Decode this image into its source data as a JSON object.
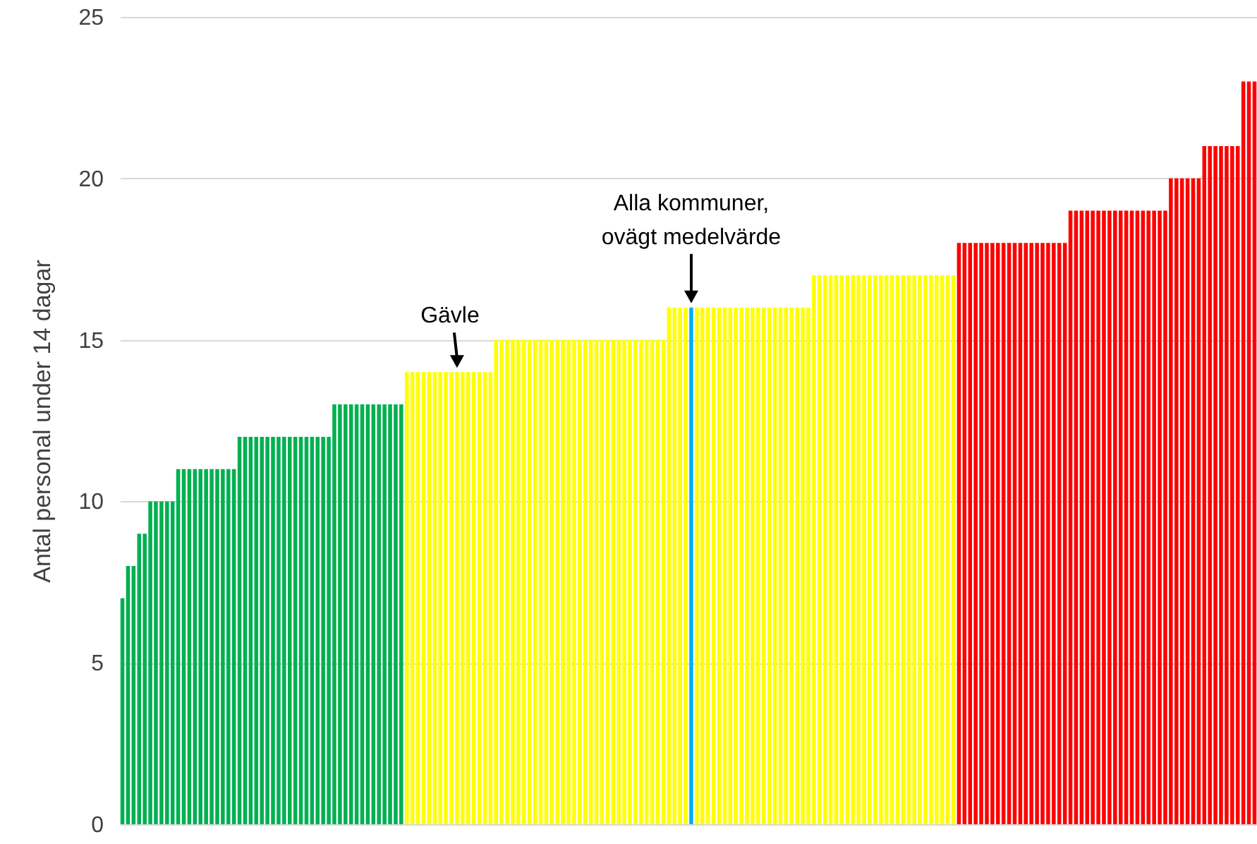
{
  "chart_data": {
    "type": "bar",
    "ylabel": "Antal personal under 14 dagar",
    "categories": [
      null,
      null,
      null,
      null,
      null,
      null,
      null,
      null,
      null,
      null,
      null,
      null,
      null,
      null,
      null,
      null,
      null,
      null,
      null,
      null,
      null,
      null,
      null,
      null,
      null,
      null,
      null,
      null,
      null,
      null,
      null,
      null,
      null,
      null,
      null,
      null,
      null,
      null,
      null,
      null,
      null,
      null,
      null,
      null,
      null,
      null,
      null,
      null,
      null,
      null,
      null,
      null,
      null,
      null,
      null,
      null,
      null,
      null,
      null,
      null,
      null,
      null,
      null,
      null,
      null,
      null,
      null,
      null,
      null,
      null,
      null,
      null,
      null,
      null,
      null,
      null,
      null,
      null,
      null,
      null,
      null,
      null,
      null,
      null,
      null,
      null,
      null,
      null,
      null,
      null,
      null,
      null,
      null,
      null,
      null,
      null,
      null,
      null,
      null,
      null,
      null,
      null,
      null,
      null,
      null,
      null,
      null,
      null,
      null,
      null,
      null,
      null,
      null,
      null,
      null,
      null,
      null,
      null,
      null,
      null,
      null,
      null,
      null,
      null,
      null,
      null,
      null,
      null,
      null,
      null,
      null,
      null,
      null,
      null,
      null,
      null,
      null,
      null,
      null,
      null,
      null,
      null,
      null,
      null,
      null,
      null,
      null,
      null,
      null,
      null,
      null,
      null,
      null,
      null,
      null,
      null,
      null,
      null,
      null,
      null,
      null,
      null,
      null,
      null,
      null,
      null,
      null,
      null,
      null,
      null,
      null,
      null,
      null,
      null,
      null,
      null,
      null,
      null,
      null,
      null,
      null,
      null,
      null,
      null,
      null,
      null,
      null,
      null,
      null,
      null,
      null,
      null,
      null,
      null,
      null,
      null,
      null,
      null,
      null,
      null,
      null,
      null,
      null,
      null
    ],
    "values": [
      7,
      8,
      8,
      9,
      9,
      10,
      10,
      10,
      10,
      10,
      11,
      11,
      11,
      11,
      11,
      11,
      11,
      11,
      11,
      11,
      11,
      12,
      12,
      12,
      12,
      12,
      12,
      12,
      12,
      12,
      12,
      12,
      12,
      12,
      12,
      12,
      12,
      12,
      13,
      13,
      13,
      13,
      13,
      13,
      13,
      13,
      13,
      13,
      13,
      13,
      13,
      14,
      14,
      14,
      14,
      14,
      14,
      14,
      14,
      14,
      14,
      14,
      14,
      14,
      14,
      14,
      14,
      15,
      15,
      15,
      15,
      15,
      15,
      15,
      15,
      15,
      15,
      15,
      15,
      15,
      15,
      15,
      15,
      15,
      15,
      15,
      15,
      15,
      15,
      15,
      15,
      15,
      15,
      15,
      15,
      15,
      15,
      15,
      16,
      16,
      16,
      16,
      16,
      16,
      16,
      16,
      16,
      16,
      16,
      16,
      16,
      16,
      16,
      16,
      16,
      16,
      16,
      16,
      16,
      16,
      16,
      16,
      16,
      16,
      17,
      17,
      17,
      17,
      17,
      17,
      17,
      17,
      17,
      17,
      17,
      17,
      17,
      17,
      17,
      17,
      17,
      17,
      17,
      17,
      17,
      17,
      17,
      17,
      17,
      17,
      18,
      18,
      18,
      18,
      18,
      18,
      18,
      18,
      18,
      18,
      18,
      18,
      18,
      18,
      18,
      18,
      18,
      18,
      18,
      18,
      19,
      19,
      19,
      19,
      19,
      19,
      19,
      19,
      19,
      19,
      19,
      19,
      19,
      19,
      19,
      19,
      19,
      19,
      20,
      20,
      20,
      20,
      20,
      20,
      21,
      21,
      21,
      21,
      21,
      21,
      21,
      23,
      23,
      23
    ],
    "colors": [
      "#00b050",
      "#00b050",
      "#00b050",
      "#00b050",
      "#00b050",
      "#00b050",
      "#00b050",
      "#00b050",
      "#00b050",
      "#00b050",
      "#00b050",
      "#00b050",
      "#00b050",
      "#00b050",
      "#00b050",
      "#00b050",
      "#00b050",
      "#00b050",
      "#00b050",
      "#00b050",
      "#00b050",
      "#00b050",
      "#00b050",
      "#00b050",
      "#00b050",
      "#00b050",
      "#00b050",
      "#00b050",
      "#00b050",
      "#00b050",
      "#00b050",
      "#00b050",
      "#00b050",
      "#00b050",
      "#00b050",
      "#00b050",
      "#00b050",
      "#00b050",
      "#00b050",
      "#00b050",
      "#00b050",
      "#00b050",
      "#00b050",
      "#00b050",
      "#00b050",
      "#00b050",
      "#00b050",
      "#00b050",
      "#00b050",
      "#00b050",
      "#00b050",
      "#ffff00",
      "#ffff00",
      "#ffff00",
      "#ffff00",
      "#ffff00",
      "#ffff00",
      "#ffff00",
      "#ffff00",
      "#ffff00",
      "#ffff00",
      "#ffff00",
      "#ffff00",
      "#ffff00",
      "#ffff00",
      "#ffff00",
      "#ffff00",
      "#ffff00",
      "#ffff00",
      "#ffff00",
      "#ffff00",
      "#ffff00",
      "#ffff00",
      "#ffff00",
      "#ffff00",
      "#ffff00",
      "#ffff00",
      "#ffff00",
      "#ffff00",
      "#ffff00",
      "#ffff00",
      "#ffff00",
      "#ffff00",
      "#ffff00",
      "#ffff00",
      "#ffff00",
      "#ffff00",
      "#ffff00",
      "#ffff00",
      "#ffff00",
      "#ffff00",
      "#ffff00",
      "#ffff00",
      "#ffff00",
      "#ffff00",
      "#ffff00",
      "#ffff00",
      "#ffff00",
      "#ffff00",
      "#ffff00",
      "#ffff00",
      "#ffff00",
      "#00b0f0",
      "#ffff00",
      "#ffff00",
      "#ffff00",
      "#ffff00",
      "#ffff00",
      "#ffff00",
      "#ffff00",
      "#ffff00",
      "#ffff00",
      "#ffff00",
      "#ffff00",
      "#ffff00",
      "#ffff00",
      "#ffff00",
      "#ffff00",
      "#ffff00",
      "#ffff00",
      "#ffff00",
      "#ffff00",
      "#ffff00",
      "#ffff00",
      "#ffff00",
      "#ffff00",
      "#ffff00",
      "#ffff00",
      "#ffff00",
      "#ffff00",
      "#ffff00",
      "#ffff00",
      "#ffff00",
      "#ffff00",
      "#ffff00",
      "#ffff00",
      "#ffff00",
      "#ffff00",
      "#ffff00",
      "#ffff00",
      "#ffff00",
      "#ffff00",
      "#ffff00",
      "#ffff00",
      "#ffff00",
      "#ffff00",
      "#ffff00",
      "#ffff00",
      "#ffff00",
      "#ffff00",
      "#ff0000",
      "#ff0000",
      "#ff0000",
      "#ff0000",
      "#ff0000",
      "#ff0000",
      "#ff0000",
      "#ff0000",
      "#ff0000",
      "#ff0000",
      "#ff0000",
      "#ff0000",
      "#ff0000",
      "#ff0000",
      "#ff0000",
      "#ff0000",
      "#ff0000",
      "#ff0000",
      "#ff0000",
      "#ff0000",
      "#ff0000",
      "#ff0000",
      "#ff0000",
      "#ff0000",
      "#ff0000",
      "#ff0000",
      "#ff0000",
      "#ff0000",
      "#ff0000",
      "#ff0000",
      "#ff0000",
      "#ff0000",
      "#ff0000",
      "#ff0000",
      "#ff0000",
      "#ff0000",
      "#ff0000",
      "#ff0000",
      "#ff0000",
      "#ff0000",
      "#ff0000",
      "#ff0000",
      "#ff0000",
      "#ff0000",
      "#ff0000",
      "#ff0000",
      "#ff0000",
      "#ff0000",
      "#ff0000",
      "#ff0000",
      "#ff0000",
      "#ff0000",
      "#ff0000",
      "#ff0000"
    ],
    "annotations": [
      "Gävle",
      "Alla kommuner,\novägt medelvärde"
    ],
    "ylim": [
      0,
      25
    ],
    "yticks": [
      0,
      5,
      10,
      15,
      20,
      25
    ],
    "grid": "y",
    "tick_labels": "y"
  }
}
